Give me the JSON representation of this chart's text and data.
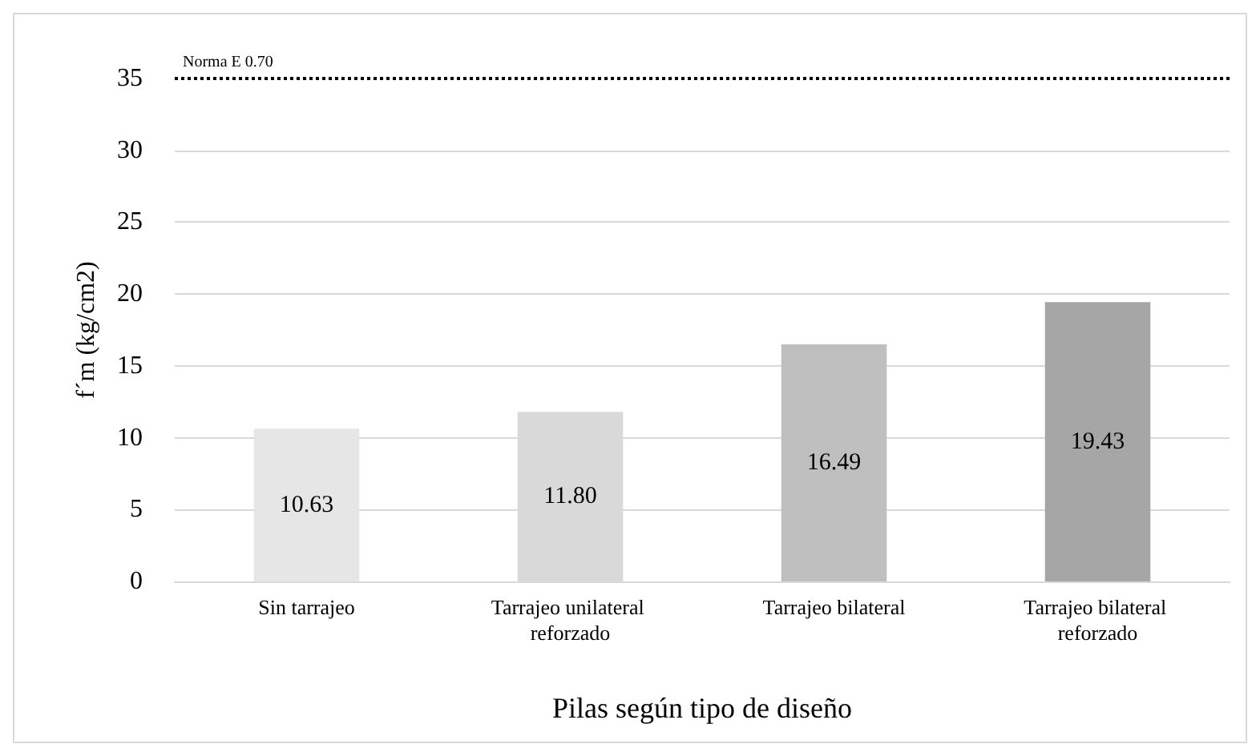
{
  "chart_data": {
    "type": "bar",
    "xlabel": "Pilas según tipo de diseño",
    "ylabel": "f´m (kg/cm2)",
    "categories": [
      "Sin tarrajeo",
      "Tarrajeo unilateral reforzado",
      "Tarrajeo bilateral",
      "Tarrajeo bilateral reforzado"
    ],
    "values": [
      10.63,
      11.8,
      16.49,
      19.43
    ],
    "colors": [
      "#e6e6e6",
      "#d9d9d9",
      "#bfbfbf",
      "#a6a6a6"
    ],
    "value_labels": [
      "10.63",
      "11.80",
      "16.49",
      "19.43"
    ],
    "ylim": [
      0,
      35
    ],
    "yticks": [
      0,
      5,
      10,
      15,
      20,
      25,
      30,
      35
    ],
    "grid": "y",
    "ref_lines": [
      {
        "axis": "y",
        "value": 35,
        "label": "Norma E 0.70",
        "color": "#000000",
        "line_style": "dotted"
      }
    ]
  }
}
